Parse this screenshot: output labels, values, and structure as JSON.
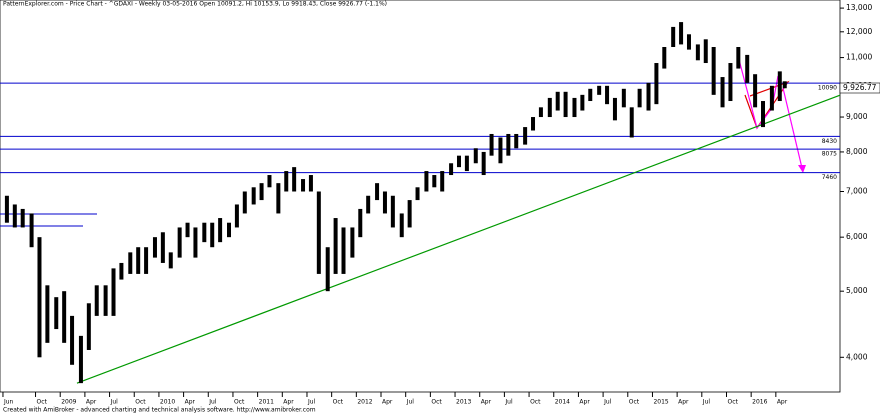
{
  "chart_data": {
    "type": "range-bar",
    "title": "PatternExplorer.com - Price Chart - ^GDAXI - Weekly 03-05-2016 Open 10091.2, Hi 10153.9, Lo 9918.43, Close 9926.77 (-1.1%)",
    "footer": "Created with AmiBroker - advanced charting and technical analysis software. http://www.amibroker.com",
    "log_scale": true,
    "color": "#000000",
    "xlim": [
      2008.39,
      2016.9
    ],
    "ylim": [
      3730,
      13360
    ],
    "yticks": [
      {
        "value": 4000,
        "label": "4,000"
      },
      {
        "value": 5000,
        "label": "5,000"
      },
      {
        "value": 6000,
        "label": "6,000"
      },
      {
        "value": 7000,
        "label": "7,000"
      },
      {
        "value": 8000,
        "label": "8,000"
      },
      {
        "value": 9000,
        "label": "9,000"
      },
      {
        "value": 10000,
        "label": "10,000"
      },
      {
        "value": 11000,
        "label": "11,000"
      },
      {
        "value": 12000,
        "label": "12,000"
      },
      {
        "value": 13000,
        "label": "13,000"
      }
    ],
    "xticks": [
      {
        "value": 2008.42,
        "label": "Jun"
      },
      {
        "value": 2008.75,
        "label": "Oct"
      },
      {
        "value": 2009.0,
        "label": "2009"
      },
      {
        "value": 2009.25,
        "label": "Apr"
      },
      {
        "value": 2009.5,
        "label": "Jul"
      },
      {
        "value": 2009.75,
        "label": "Oct"
      },
      {
        "value": 2010.0,
        "label": "2010"
      },
      {
        "value": 2010.25,
        "label": "Apr"
      },
      {
        "value": 2010.5,
        "label": "Jul"
      },
      {
        "value": 2010.75,
        "label": "Oct"
      },
      {
        "value": 2011.0,
        "label": "2011"
      },
      {
        "value": 2011.25,
        "label": "Apr"
      },
      {
        "value": 2011.5,
        "label": "Jul"
      },
      {
        "value": 2011.75,
        "label": "Oct"
      },
      {
        "value": 2012.0,
        "label": "2012"
      },
      {
        "value": 2012.25,
        "label": "Apr"
      },
      {
        "value": 2012.5,
        "label": "Jul"
      },
      {
        "value": 2012.75,
        "label": "Oct"
      },
      {
        "value": 2013.0,
        "label": "2013"
      },
      {
        "value": 2013.25,
        "label": "Apr"
      },
      {
        "value": 2013.5,
        "label": "Jul"
      },
      {
        "value": 2013.75,
        "label": "Oct"
      },
      {
        "value": 2014.0,
        "label": "2014"
      },
      {
        "value": 2014.25,
        "label": "Apr"
      },
      {
        "value": 2014.5,
        "label": "Jul"
      },
      {
        "value": 2014.75,
        "label": "Oct"
      },
      {
        "value": 2015.0,
        "label": "2015"
      },
      {
        "value": 2015.25,
        "label": "Apr"
      },
      {
        "value": 2015.5,
        "label": "Jul"
      },
      {
        "value": 2015.75,
        "label": "Oct"
      },
      {
        "value": 2016.0,
        "label": "2016"
      },
      {
        "value": 2016.25,
        "label": "Apr"
      }
    ],
    "x": [
      2008.46,
      2008.54,
      2008.62,
      2008.71,
      2008.79,
      2008.87,
      2008.96,
      2009.04,
      2009.12,
      2009.21,
      2009.29,
      2009.37,
      2009.46,
      2009.54,
      2009.62,
      2009.71,
      2009.79,
      2009.87,
      2009.96,
      2010.04,
      2010.12,
      2010.21,
      2010.29,
      2010.37,
      2010.46,
      2010.54,
      2010.62,
      2010.71,
      2010.79,
      2010.87,
      2010.96,
      2011.04,
      2011.12,
      2011.21,
      2011.29,
      2011.37,
      2011.46,
      2011.54,
      2011.62,
      2011.71,
      2011.79,
      2011.87,
      2011.96,
      2012.04,
      2012.12,
      2012.21,
      2012.29,
      2012.37,
      2012.46,
      2012.54,
      2012.62,
      2012.71,
      2012.79,
      2012.87,
      2012.96,
      2013.04,
      2013.12,
      2013.21,
      2013.29,
      2013.37,
      2013.46,
      2013.54,
      2013.62,
      2013.71,
      2013.79,
      2013.87,
      2013.96,
      2014.04,
      2014.12,
      2014.21,
      2014.29,
      2014.37,
      2014.46,
      2014.54,
      2014.62,
      2014.71,
      2014.79,
      2014.87,
      2014.96,
      2015.04,
      2015.12,
      2015.21,
      2015.29,
      2015.37,
      2015.46,
      2015.54,
      2015.62,
      2015.71,
      2015.79,
      2015.87,
      2015.96,
      2016.04,
      2016.12,
      2016.21,
      2016.29,
      2016.34
    ],
    "low": [
      6300,
      6200,
      6200,
      5800,
      4000,
      4200,
      4400,
      4200,
      3900,
      3666,
      4100,
      4600,
      4600,
      4600,
      5200,
      5300,
      5300,
      5300,
      5600,
      5500,
      5400,
      5600,
      6000,
      5600,
      5900,
      5800,
      5900,
      6000,
      6200,
      6500,
      6700,
      6800,
      7100,
      6500,
      7000,
      7000,
      7000,
      7000,
      5300,
      5000,
      5300,
      5300,
      5600,
      6000,
      6500,
      6800,
      6500,
      6200,
      6000,
      6200,
      6800,
      7000,
      7100,
      7000,
      7400,
      7600,
      7500,
      7700,
      7400,
      7900,
      7700,
      7900,
      8100,
      8200,
      8600,
      9000,
      9000,
      9200,
      9000,
      9000,
      9200,
      9500,
      9700,
      9400,
      8900,
      9300,
      8400,
      9300,
      9200,
      9400,
      10600,
      11400,
      11500,
      11300,
      10900,
      10800,
      9700,
      9300,
      9500,
      10600,
      10100,
      9300,
      8700,
      9200,
      9500,
      9918.43
    ],
    "high": [
      6900,
      6700,
      6600,
      6500,
      6000,
      5100,
      4900,
      5000,
      4600,
      4300,
      4800,
      5100,
      5100,
      5400,
      5500,
      5700,
      5800,
      5800,
      6000,
      6100,
      5700,
      6200,
      6300,
      6200,
      6300,
      6300,
      6400,
      6300,
      6700,
      7000,
      7100,
      7200,
      7400,
      7200,
      7500,
      7600,
      7300,
      7400,
      7000,
      5800,
      6400,
      6200,
      6200,
      6600,
      6900,
      7200,
      7000,
      6900,
      6500,
      6800,
      7100,
      7500,
      7400,
      7500,
      7700,
      7900,
      7900,
      8100,
      8000,
      8500,
      8400,
      8500,
      8500,
      8700,
      9000,
      9300,
      9600,
      9800,
      9800,
      9600,
      9700,
      9900,
      10000,
      10000,
      9600,
      9900,
      9300,
      9900,
      10100,
      10800,
      11400,
      12200,
      12400,
      11900,
      11500,
      11700,
      11400,
      10300,
      10800,
      11400,
      11100,
      10400,
      9500,
      10000,
      10500,
      10153.9
    ],
    "levels": [
      {
        "value": 10090,
        "label": "10090",
        "color": "#0000cc"
      },
      {
        "value": 8430,
        "label": "8430",
        "color": "#0000cc"
      },
      {
        "value": 8075,
        "label": "8075",
        "color": "#0000cc"
      },
      {
        "value": 7460,
        "label": "7460",
        "color": "#0000cc"
      }
    ],
    "trendline": {
      "color": "#009900",
      "x": [
        2009.17,
        2016.9
      ],
      "y": [
        3666,
        9690
      ]
    },
    "last_price": {
      "value": 9926.77,
      "label": "9,926.77"
    }
  }
}
